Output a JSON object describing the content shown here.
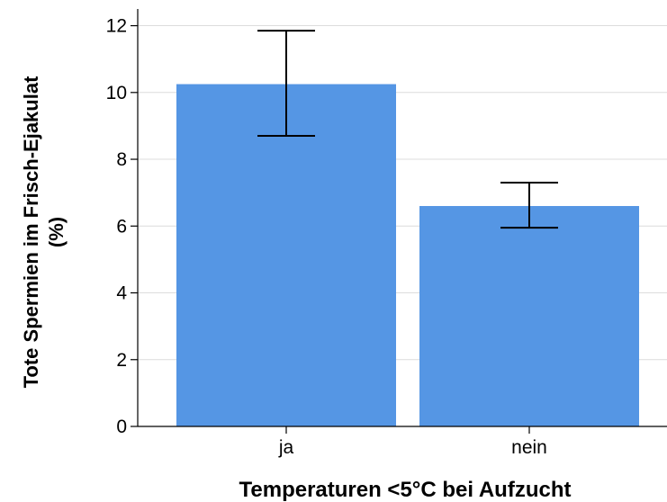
{
  "chart_data": {
    "type": "bar",
    "categories": [
      "ja",
      "nein"
    ],
    "values": [
      10.25,
      6.6
    ],
    "error_low": [
      8.7,
      5.95
    ],
    "error_high": [
      11.85,
      7.3
    ],
    "xlabel": "Temperaturen <5°C bei Aufzucht",
    "ylabel_line1": "Tote Spermien im Frisch-Ejakulat",
    "ylabel_line2": "(%)",
    "ylim": [
      0,
      12.5
    ],
    "yticks": [
      0,
      2,
      4,
      6,
      8,
      10,
      12
    ],
    "grid": true,
    "bar_color": "#5596e4",
    "grid_color": "#dcdcdc"
  }
}
